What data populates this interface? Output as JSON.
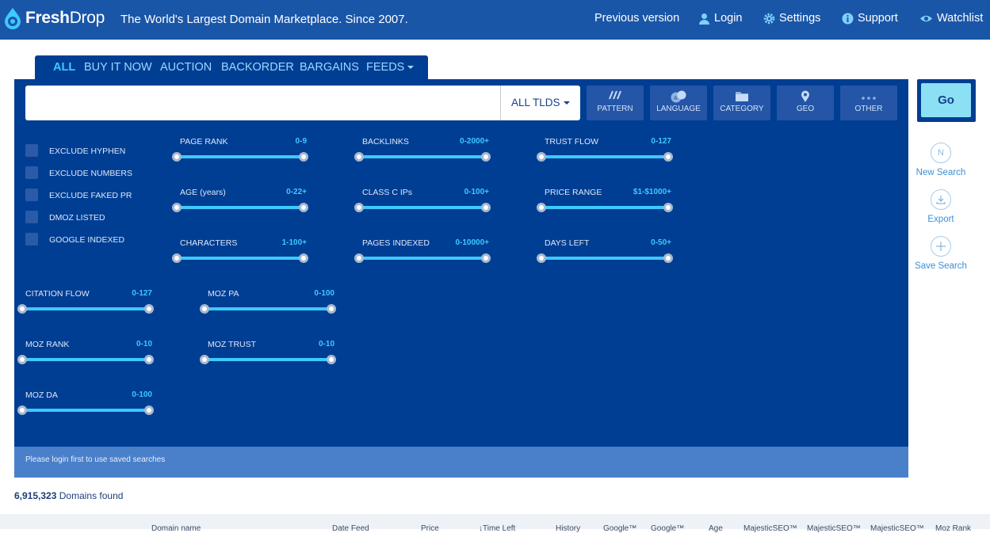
{
  "header": {
    "logo_bold": "Fresh",
    "logo_thin": "Drop",
    "tagline": "The World's Largest Domain Marketplace. Since 2007.",
    "nav": {
      "previous_version": "Previous version",
      "login": "Login",
      "settings": "Settings",
      "support": "Support",
      "watchlist": "Watchlist"
    }
  },
  "tabs": {
    "all": "ALL",
    "buy_it_now": "BUY IT NOW",
    "auction": "AUCTION",
    "backorder": "BACKORDER",
    "bargains": "BARGAINS",
    "feeds": "FEEDS"
  },
  "search": {
    "placeholder": "",
    "value": "",
    "tld_select": "ALL TLDS",
    "go_label": "Go"
  },
  "filter_buttons": {
    "pattern": "PATTERN",
    "language": "LANGUAGE",
    "category": "CATEGORY",
    "geo": "GEO",
    "other": "OTHER"
  },
  "checkboxes": {
    "exclude_hyphen": "EXCLUDE HYPHEN",
    "exclude_numbers": "EXCLUDE NUMBERS",
    "exclude_faked_pr": "EXCLUDE FAKED PR",
    "dmoz_listed": "DMOZ LISTED",
    "google_indexed": "GOOGLE INDEXED"
  },
  "sliders": {
    "page_rank": {
      "label": "PAGE RANK",
      "range": "0-9"
    },
    "backlinks": {
      "label": "BACKLINKS",
      "range": "0-2000+"
    },
    "trust_flow": {
      "label": "TRUST FLOW",
      "range": "0-127"
    },
    "age": {
      "label": "AGE (years)",
      "range": "0-22+"
    },
    "class_c_ips": {
      "label": "CLASS C IPs",
      "range": "0-100+"
    },
    "price_range": {
      "label": "PRICE RANGE",
      "range": "$1-$1000+"
    },
    "characters": {
      "label": "CHARACTERS",
      "range": "1-100+"
    },
    "pages_indexed": {
      "label": "PAGES INDEXED",
      "range": "0-10000+"
    },
    "days_left": {
      "label": "DAYS LEFT",
      "range": "0-50+"
    },
    "citation_flow": {
      "label": "CITATION FLOW",
      "range": "0-127"
    },
    "moz_pa": {
      "label": "MOZ PA",
      "range": "0-100"
    },
    "moz_rank": {
      "label": "MOZ RANK",
      "range": "0-10"
    },
    "moz_trust": {
      "label": "MOZ TRUST",
      "range": "0-10"
    },
    "moz_da": {
      "label": "MOZ DA",
      "range": "0-100"
    }
  },
  "notice": "Please login first to use saved searches",
  "side_actions": {
    "new_search": "New Search",
    "new_search_glyph": "N",
    "export": "Export",
    "save_search": "Save Search"
  },
  "results": {
    "count": "6,915,323",
    "suffix": "Domains found"
  },
  "table_headers": [
    "Domain name",
    "Date Feed",
    "Price",
    "↓Time Left",
    "History",
    "Google™",
    "Google™",
    "Age",
    "MajesticSEO™",
    "MajesticSEO™",
    "MajesticSEO™",
    "Moz Rank"
  ],
  "colors": {
    "header_bg": "#1a56a8",
    "panel_bg": "#003e93",
    "accent": "#3ec9ff",
    "go_bg": "#8ce0f3"
  }
}
